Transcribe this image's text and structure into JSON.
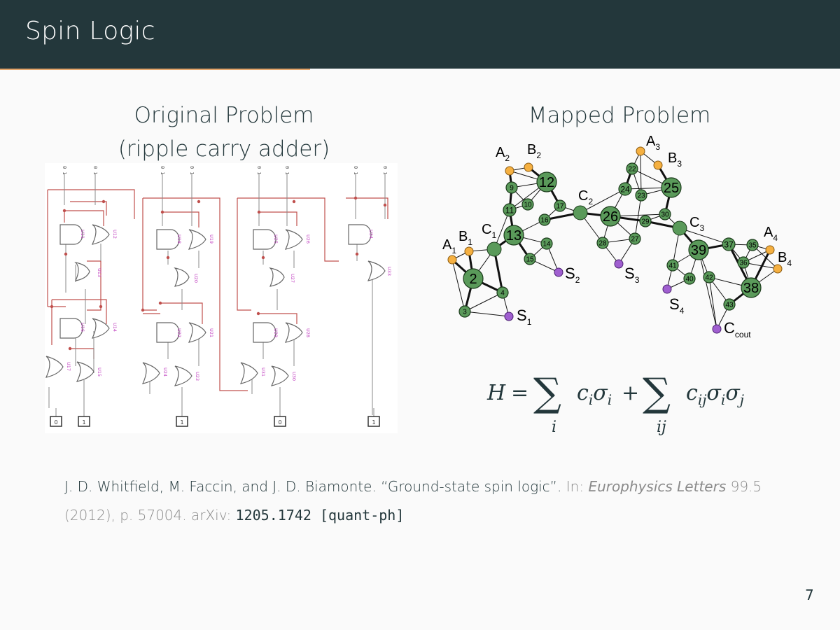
{
  "header": {
    "title": "Spin Logic"
  },
  "left": {
    "title": "Original Problem",
    "subtitle": "(ripple carry adder)",
    "circuit": {
      "input_labels": [
        "0 1",
        "0 1",
        "0 1",
        "0 1",
        "0 1",
        "0 1",
        "0 1",
        "0 1"
      ],
      "gate_labels": [
        "U11",
        "U12",
        "U13",
        "U16",
        "U14",
        "U17",
        "U15",
        "U18",
        "U19",
        "U20",
        "U22",
        "U21",
        "U24",
        "U23",
        "U25",
        "U26",
        "U27",
        "U29",
        "U28",
        "U31",
        "U30",
        "U34",
        "U33"
      ],
      "outputs": [
        "0",
        "1",
        "1",
        "0",
        "1"
      ]
    }
  },
  "right": {
    "title": "Mapped Problem",
    "equation": {
      "lhs": "H",
      "eq": "=",
      "plus": "+",
      "sum": "∑",
      "term1_base": "c",
      "term1_sub": "i",
      "term1_sigma": "σ",
      "term1_sigma_sub": "i",
      "sum1_index": "i",
      "term2_base": "c",
      "term2_sub": "ij",
      "term2_sigma1": "σ",
      "term2_sigma1_sub": "i",
      "term2_sigma2": "σ",
      "term2_sigma2_sub": "j",
      "sum2_index": "ij"
    },
    "graph": {
      "colors": {
        "node": "#5a9a5a",
        "node_stroke": "#1a3a1a",
        "input": "#f5b041",
        "sink": "#a05fd0"
      },
      "numbered_nodes": [
        "2",
        "3",
        "4",
        "9",
        "10",
        "11",
        "12",
        "13",
        "14",
        "15",
        "16",
        "17",
        "22",
        "23",
        "24",
        "25",
        "26",
        "27",
        "28",
        "29",
        "30",
        "35",
        "36",
        "37",
        "38",
        "39",
        "40",
        "41",
        "42",
        "43"
      ],
      "labels": [
        {
          "main": "A",
          "sub": "1"
        },
        {
          "main": "B",
          "sub": "1"
        },
        {
          "main": "C",
          "sub": "1"
        },
        {
          "main": "A",
          "sub": "2"
        },
        {
          "main": "B",
          "sub": "2"
        },
        {
          "main": "C",
          "sub": "2"
        },
        {
          "main": "A",
          "sub": "3"
        },
        {
          "main": "B",
          "sub": "3"
        },
        {
          "main": "C",
          "sub": "3"
        },
        {
          "main": "A",
          "sub": "4"
        },
        {
          "main": "B",
          "sub": "4"
        },
        {
          "main": "S",
          "sub": "1"
        },
        {
          "main": "S",
          "sub": "2"
        },
        {
          "main": "S",
          "sub": "3"
        },
        {
          "main": "S",
          "sub": "4"
        },
        {
          "main": "C",
          "sub": "cout"
        }
      ]
    }
  },
  "citation": {
    "authors": "J. D. Whitfield, M. Faccin, and J. D. Biamonte.",
    "title": "“Ground-state spin logic”.",
    "in": "In:",
    "journal": "Europhysics Letters",
    "volume": "99.5 (2012), p. 57004.",
    "arxiv_label": "arXiv:",
    "arxiv_id": "1205.1742 [quant-ph]"
  },
  "page_number": "7"
}
